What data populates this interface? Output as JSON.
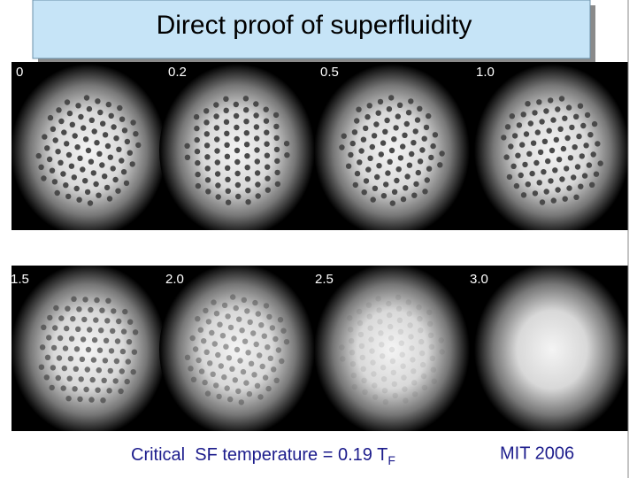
{
  "header": {
    "title": "Direct proof of superfluidity"
  },
  "panels": [
    {
      "label": "0"
    },
    {
      "label": "0.2"
    },
    {
      "label": "0.5"
    },
    {
      "label": "1.0"
    },
    {
      "label": "1.5"
    },
    {
      "label": "2.0"
    },
    {
      "label": "2.5"
    },
    {
      "label": "3.0"
    }
  ],
  "footer": {
    "caption": "Critical  SF temperature = 0.19 T",
    "caption_sub": "F",
    "credit": "MIT 2006"
  }
}
